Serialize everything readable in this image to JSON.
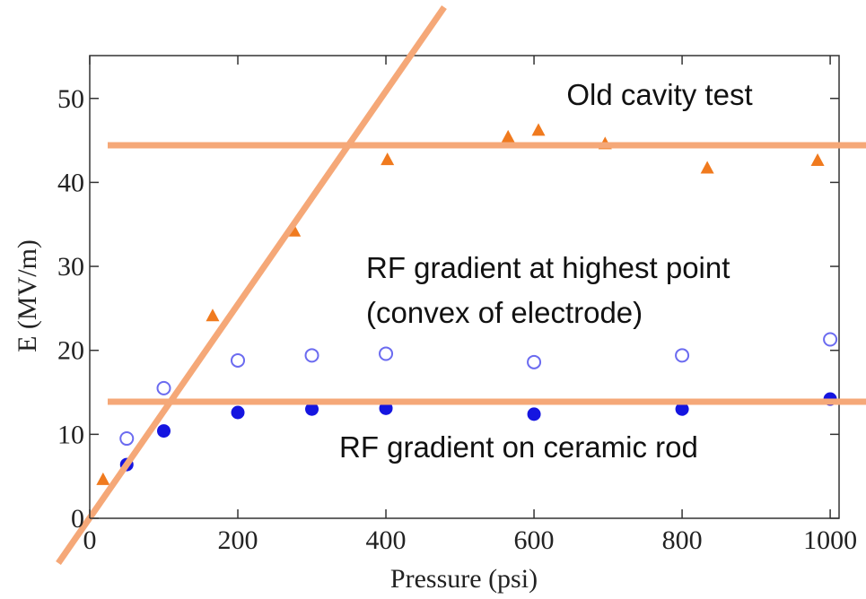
{
  "chart_data": {
    "type": "scatter",
    "xlabel": "Pressure (psi)",
    "ylabel": "E (MV/m)",
    "xlim": [
      0,
      1012
    ],
    "ylim": [
      0,
      55.1
    ],
    "xticks": [
      0,
      200,
      400,
      600,
      800,
      1000
    ],
    "yticks": [
      0,
      10,
      20,
      30,
      40,
      50
    ],
    "annotations": [
      "Old cavity test",
      "RF gradient at highest point",
      "(convex of electrode)",
      "RF gradient on ceramic rod"
    ],
    "series": [
      {
        "marker": "triangle",
        "color": "#f07a1e",
        "x": [
          18,
          166,
          276,
          402,
          565,
          606,
          696,
          834,
          983
        ],
        "values": [
          4.6,
          24.1,
          34.2,
          42.7,
          45.4,
          46.2,
          44.6,
          41.7,
          42.6
        ]
      },
      {
        "marker": "open-circle",
        "color": "#6b6bf0",
        "x": [
          50,
          100,
          200,
          300,
          400,
          600,
          800,
          1000
        ],
        "values": [
          9.5,
          15.5,
          18.8,
          19.4,
          19.6,
          18.6,
          19.4,
          21.3
        ]
      },
      {
        "marker": "circle",
        "color": "#1515e0",
        "x": [
          50,
          100,
          200,
          300,
          400,
          600,
          800,
          1000
        ],
        "values": [
          6.4,
          10.4,
          12.6,
          13.0,
          13.1,
          12.4,
          13.0,
          14.2
        ]
      }
    ]
  }
}
